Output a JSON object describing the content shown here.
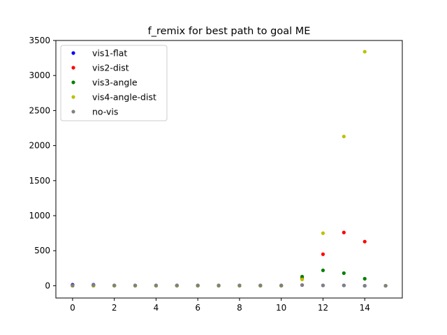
{
  "chart_data": {
    "type": "scatter",
    "title": "f_remix for best path to goal ME",
    "xlabel": "",
    "ylabel": "",
    "xlim": [
      -0.8,
      15.8
    ],
    "ylim": [
      -175,
      3500
    ],
    "xticks": [
      0,
      2,
      4,
      6,
      8,
      10,
      12,
      14
    ],
    "yticks": [
      0,
      500,
      1000,
      1500,
      2000,
      2500,
      3000,
      3500
    ],
    "grid": false,
    "legend_position": "top-left",
    "series": [
      {
        "name": "vis1-flat",
        "color": "#0000ff",
        "x": [
          0,
          1,
          2,
          3,
          4,
          5,
          6,
          7,
          8,
          9,
          10,
          11,
          12,
          13,
          14,
          15
        ],
        "y": [
          15,
          15,
          5,
          5,
          5,
          5,
          5,
          5,
          5,
          5,
          5,
          10,
          5,
          5,
          0,
          0
        ]
      },
      {
        "name": "vis2-dist",
        "color": "#ff0000",
        "x": [
          0,
          1,
          2,
          3,
          4,
          5,
          6,
          7,
          8,
          9,
          10,
          11,
          12,
          13,
          14,
          15
        ],
        "y": [
          0,
          0,
          0,
          0,
          0,
          0,
          0,
          0,
          0,
          0,
          0,
          110,
          450,
          760,
          630,
          0
        ]
      },
      {
        "name": "vis3-angle",
        "color": "#008000",
        "x": [
          0,
          1,
          2,
          3,
          4,
          5,
          6,
          7,
          8,
          9,
          10,
          11,
          12,
          13,
          14,
          15
        ],
        "y": [
          0,
          0,
          0,
          0,
          0,
          0,
          0,
          0,
          0,
          0,
          0,
          130,
          220,
          180,
          100,
          0
        ]
      },
      {
        "name": "vis4-angle-dist",
        "color": "#bfbf00",
        "x": [
          0,
          1,
          2,
          3,
          4,
          5,
          6,
          7,
          8,
          9,
          10,
          11,
          12,
          13,
          14,
          15
        ],
        "y": [
          0,
          0,
          0,
          0,
          0,
          0,
          0,
          0,
          0,
          0,
          0,
          90,
          750,
          2130,
          3340,
          0
        ]
      },
      {
        "name": "no-vis",
        "color": "#808080",
        "x": [
          0,
          1,
          2,
          3,
          4,
          5,
          6,
          7,
          8,
          9,
          10,
          11,
          12,
          13,
          14,
          15
        ],
        "y": [
          5,
          10,
          5,
          5,
          5,
          5,
          5,
          5,
          5,
          5,
          5,
          10,
          5,
          5,
          0,
          0
        ]
      }
    ]
  }
}
